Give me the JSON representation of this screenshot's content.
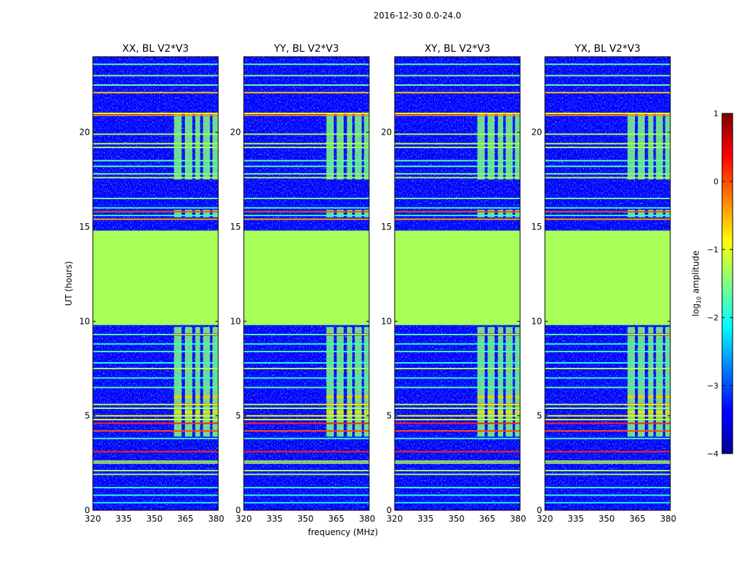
{
  "chart_data": {
    "type": "heatmap",
    "suptitle": "2016-12-30 0.0-24.0",
    "xlabel": "frequency (MHz)",
    "ylabel": "UT (hours)",
    "xlim": [
      320,
      381
    ],
    "ylim": [
      0,
      24
    ],
    "xticks": [
      320,
      335,
      350,
      365,
      380
    ],
    "yticks": [
      0,
      5,
      10,
      15,
      20
    ],
    "panels": [
      {
        "title": "XX, BL V2*V3",
        "rfi_bands_MHz": [
          [
            359.5,
            363.2
          ],
          [
            364.8,
            368.4
          ],
          [
            369.8,
            372.2
          ],
          [
            373.6,
            377.0
          ],
          [
            378.2,
            382.0
          ]
        ]
      },
      {
        "title": "YY, BL V2*V3",
        "rfi_bands_MHz": [
          [
            360.2,
            363.8
          ],
          [
            365.2,
            368.6
          ],
          [
            370.2,
            372.8
          ],
          [
            374.0,
            377.4
          ],
          [
            378.5,
            382.0
          ]
        ]
      },
      {
        "title": "XY, BL V2*V3",
        "rfi_bands_MHz": [
          [
            360.2,
            363.8
          ],
          [
            365.2,
            368.6
          ],
          [
            370.2,
            372.8
          ],
          [
            374.0,
            377.4
          ],
          [
            378.5,
            382.0
          ]
        ]
      },
      {
        "title": "YX, BL V2*V3",
        "rfi_bands_MHz": [
          [
            360.2,
            363.8
          ],
          [
            365.2,
            368.6
          ],
          [
            370.2,
            372.8
          ],
          [
            374.0,
            377.4
          ],
          [
            378.5,
            382.0
          ]
        ]
      }
    ],
    "flagged_gap_UT": [
      9.8,
      14.8
    ],
    "flagged_gap_level": -1.3,
    "background_level": -3.4,
    "rfi_level": -1.5,
    "rfi_windows_UT": [
      [
        3.9,
        9.7
      ],
      [
        15.5,
        15.9
      ],
      [
        17.5,
        21.0
      ]
    ],
    "hot_rfi_rows": [
      {
        "ut": 9.3,
        "level": 0.0
      },
      {
        "ut": 5.6,
        "level": -0.2
      },
      {
        "ut": 6.0,
        "level": -0.6
      },
      {
        "ut": 5.2,
        "level": -0.7
      }
    ],
    "horizontal_lines": [
      {
        "ut": 23.6,
        "level": -1.7
      },
      {
        "ut": 23.0,
        "level": -1.5
      },
      {
        "ut": 22.5,
        "level": -1.6
      },
      {
        "ut": 22.1,
        "level": -0.6
      },
      {
        "ut": 21.0,
        "level": -0.9
      },
      {
        "ut": 20.9,
        "level": -0.3
      },
      {
        "ut": 19.9,
        "level": -1.3
      },
      {
        "ut": 19.4,
        "level": -1.2
      },
      {
        "ut": 19.2,
        "level": -1.3
      },
      {
        "ut": 18.5,
        "level": -1.7
      },
      {
        "ut": 18.2,
        "level": -1.7
      },
      {
        "ut": 17.8,
        "level": -1.5
      },
      {
        "ut": 17.6,
        "level": -1.3
      },
      {
        "ut": 16.5,
        "level": -1.6
      },
      {
        "ut": 16.0,
        "level": -1.9
      },
      {
        "ut": 15.8,
        "level": 0.0
      },
      {
        "ut": 15.6,
        "level": -1.9
      },
      {
        "ut": 15.4,
        "level": -0.4
      },
      {
        "ut": 9.3,
        "level": -1.7
      },
      {
        "ut": 8.8,
        "level": -1.9
      },
      {
        "ut": 8.4,
        "level": -1.8
      },
      {
        "ut": 7.8,
        "level": -1.9
      },
      {
        "ut": 7.5,
        "level": -1.3
      },
      {
        "ut": 7.0,
        "level": -2.0
      },
      {
        "ut": 6.5,
        "level": -1.8
      },
      {
        "ut": 5.6,
        "level": -1.2
      },
      {
        "ut": 5.4,
        "level": -1.3
      },
      {
        "ut": 5.0,
        "level": -0.9
      },
      {
        "ut": 4.8,
        "level": -1.0
      },
      {
        "ut": 4.6,
        "level": 0.2
      },
      {
        "ut": 4.2,
        "level": 0.0
      },
      {
        "ut": 3.8,
        "level": -1.8
      },
      {
        "ut": 3.1,
        "level": 0.2
      },
      {
        "ut": 2.6,
        "level": -1.3
      },
      {
        "ut": 2.5,
        "level": -1.2
      },
      {
        "ut": 2.1,
        "level": -1.3
      },
      {
        "ut": 1.9,
        "level": -1.4
      },
      {
        "ut": 1.2,
        "level": -1.9
      },
      {
        "ut": 0.8,
        "level": -1.9
      },
      {
        "ut": 0.4,
        "level": -2.0
      }
    ],
    "colorbar": {
      "label_prefix": "log",
      "label_sub": "10",
      "label_suffix": " amplitude",
      "min": -4,
      "max": 1,
      "ticks": [
        1,
        0,
        -1,
        -2,
        -3,
        -4
      ],
      "tick_labels": [
        "1",
        "0",
        "−1",
        "−2",
        "−3",
        "−4"
      ],
      "cmap": "jet"
    }
  }
}
